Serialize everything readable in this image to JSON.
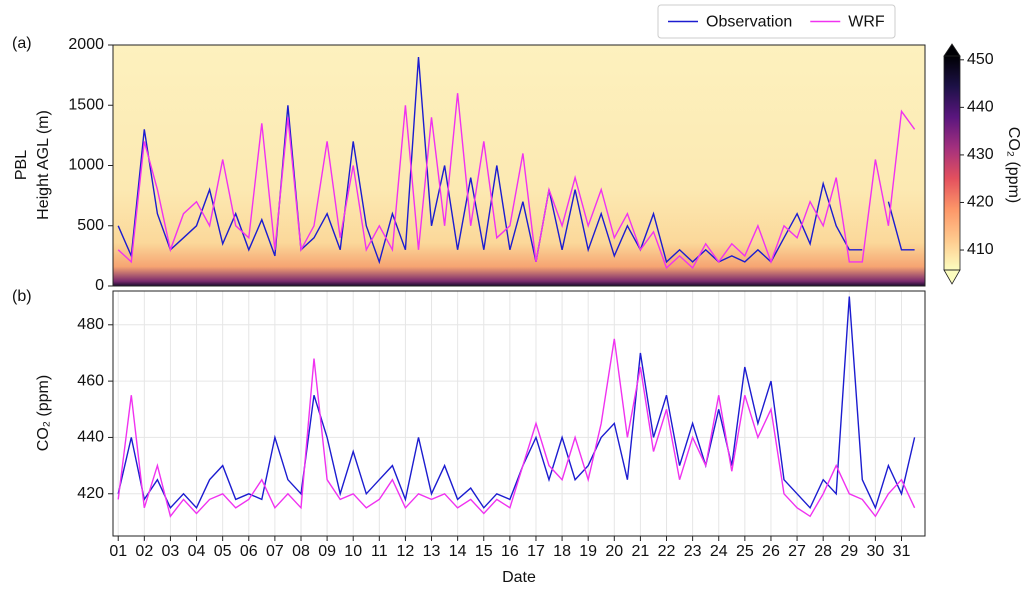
{
  "chart_data": [
    {
      "type": "line",
      "panel_label": "(a)",
      "ylabel": [
        "PBL",
        "Height AGL (m)"
      ],
      "x": [
        1,
        1.5,
        2,
        2.5,
        3,
        3.5,
        4,
        4.5,
        5,
        5.5,
        6,
        6.5,
        7,
        7.5,
        8,
        8.5,
        9,
        9.5,
        10,
        10.5,
        11,
        11.5,
        12,
        12.5,
        13,
        13.5,
        14,
        14.5,
        15,
        15.5,
        16,
        16.5,
        17,
        17.5,
        18,
        18.5,
        19,
        19.5,
        20,
        20.5,
        21,
        21.5,
        22,
        22.5,
        23,
        23.5,
        24,
        24.5,
        25,
        25.5,
        26,
        26.5,
        27,
        27.5,
        28,
        28.5,
        29,
        29.5,
        30,
        30.5,
        31,
        31.5
      ],
      "xlim": [
        0.8,
        31.9
      ],
      "ylim": [
        0,
        2000
      ],
      "yticks": [
        0,
        500,
        1000,
        1500,
        2000
      ],
      "legend": "top-right",
      "series": [
        {
          "name": "Observation",
          "color": "#1c1cd0",
          "values": [
            500,
            250,
            1300,
            600,
            300,
            400,
            500,
            800,
            350,
            600,
            300,
            550,
            250,
            1500,
            300,
            400,
            600,
            300,
            1200,
            500,
            200,
            600,
            300,
            1900,
            500,
            1000,
            300,
            900,
            300,
            1000,
            300,
            700,
            200,
            800,
            300,
            800,
            300,
            600,
            250,
            500,
            300,
            600,
            200,
            300,
            200,
            300,
            200,
            250,
            200,
            300,
            200,
            400,
            600,
            350,
            850,
            500,
            300,
            300,
            null,
            700,
            300,
            300
          ]
        },
        {
          "name": "WRF",
          "color": "#f032f0",
          "values": [
            300,
            200,
            1200,
            800,
            300,
            600,
            700,
            500,
            1050,
            500,
            400,
            1350,
            300,
            1400,
            300,
            500,
            1200,
            400,
            1000,
            300,
            500,
            300,
            1500,
            300,
            1400,
            500,
            1600,
            500,
            1200,
            400,
            500,
            1100,
            200,
            800,
            500,
            900,
            500,
            800,
            400,
            600,
            300,
            450,
            150,
            250,
            150,
            350,
            200,
            350,
            250,
            500,
            200,
            500,
            400,
            700,
            500,
            900,
            200,
            200,
            1050,
            500,
            1450,
            1300
          ]
        }
      ],
      "colorbar": {
        "label": "CO₂ (ppm)",
        "lim": [
          405.8,
          450.8
        ],
        "ticks": [
          410,
          420,
          430,
          440,
          450
        ],
        "colors": [
          "#fcfdbf",
          "#fec98d",
          "#fd9668",
          "#e3505e",
          "#a3307e",
          "#5a167e",
          "#1d1147",
          "#000004"
        ]
      }
    },
    {
      "type": "line",
      "panel_label": "(b)",
      "ylabel": "CO₂ (ppm)",
      "xlabel": "Date",
      "x": [
        1,
        1.5,
        2,
        2.5,
        3,
        3.5,
        4,
        4.5,
        5,
        5.5,
        6,
        6.5,
        7,
        7.5,
        8,
        8.5,
        9,
        9.5,
        10,
        10.5,
        11,
        11.5,
        12,
        12.5,
        13,
        13.5,
        14,
        14.5,
        15,
        15.5,
        16,
        16.5,
        17,
        17.5,
        18,
        18.5,
        19,
        19.5,
        20,
        20.5,
        21,
        21.5,
        22,
        22.5,
        23,
        23.5,
        24,
        24.5,
        25,
        25.5,
        26,
        26.5,
        27,
        27.5,
        28,
        28.5,
        29,
        29.5,
        30,
        30.5,
        31,
        31.5
      ],
      "xlim": [
        0.8,
        31.9
      ],
      "ylim": [
        405,
        492
      ],
      "yticks": [
        420,
        440,
        460,
        480
      ],
      "grid": true,
      "xticks": [
        {
          "value": 1,
          "label": "01"
        },
        {
          "value": 2,
          "label": "02"
        },
        {
          "value": 3,
          "label": "03"
        },
        {
          "value": 4,
          "label": "04"
        },
        {
          "value": 5,
          "label": "05"
        },
        {
          "value": 6,
          "label": "06"
        },
        {
          "value": 7,
          "label": "07"
        },
        {
          "value": 8,
          "label": "08"
        },
        {
          "value": 9,
          "label": "09"
        },
        {
          "value": 10,
          "label": "10"
        },
        {
          "value": 11,
          "label": "11"
        },
        {
          "value": 12,
          "label": "12"
        },
        {
          "value": 13,
          "label": "13"
        },
        {
          "value": 14,
          "label": "14"
        },
        {
          "value": 15,
          "label": "15"
        },
        {
          "value": 16,
          "label": "16"
        },
        {
          "value": 17,
          "label": "17"
        },
        {
          "value": 18,
          "label": "18"
        },
        {
          "value": 19,
          "label": "19"
        },
        {
          "value": 20,
          "label": "20"
        },
        {
          "value": 21,
          "label": "21"
        },
        {
          "value": 22,
          "label": "22"
        },
        {
          "value": 23,
          "label": "23"
        },
        {
          "value": 24,
          "label": "24"
        },
        {
          "value": 25,
          "label": "25"
        },
        {
          "value": 26,
          "label": "26"
        },
        {
          "value": 27,
          "label": "27"
        },
        {
          "value": 28,
          "label": "28"
        },
        {
          "value": 29,
          "label": "29"
        },
        {
          "value": 30,
          "label": "30"
        },
        {
          "value": 31,
          "label": "31"
        }
      ],
      "series": [
        {
          "color": "#1c1cd0",
          "values": [
            420,
            440,
            418,
            425,
            415,
            420,
            415,
            425,
            430,
            418,
            420,
            418,
            440,
            425,
            420,
            455,
            440,
            420,
            435,
            420,
            425,
            430,
            418,
            440,
            420,
            430,
            418,
            422,
            415,
            420,
            418,
            430,
            440,
            425,
            440,
            425,
            430,
            440,
            445,
            425,
            470,
            440,
            455,
            430,
            445,
            430,
            450,
            430,
            465,
            445,
            460,
            425,
            420,
            415,
            425,
            420,
            490,
            425,
            415,
            430,
            420,
            440
          ]
        },
        {
          "color": "#f032f0",
          "values": [
            418,
            455,
            415,
            430,
            412,
            418,
            413,
            418,
            420,
            415,
            418,
            425,
            415,
            420,
            415,
            468,
            425,
            418,
            420,
            415,
            418,
            425,
            415,
            420,
            418,
            420,
            415,
            418,
            413,
            418,
            415,
            430,
            445,
            430,
            425,
            440,
            425,
            445,
            475,
            440,
            465,
            435,
            450,
            425,
            440,
            430,
            455,
            428,
            455,
            440,
            450,
            420,
            415,
            412,
            420,
            430,
            420,
            418,
            412,
            420,
            425,
            415
          ]
        }
      ]
    }
  ]
}
